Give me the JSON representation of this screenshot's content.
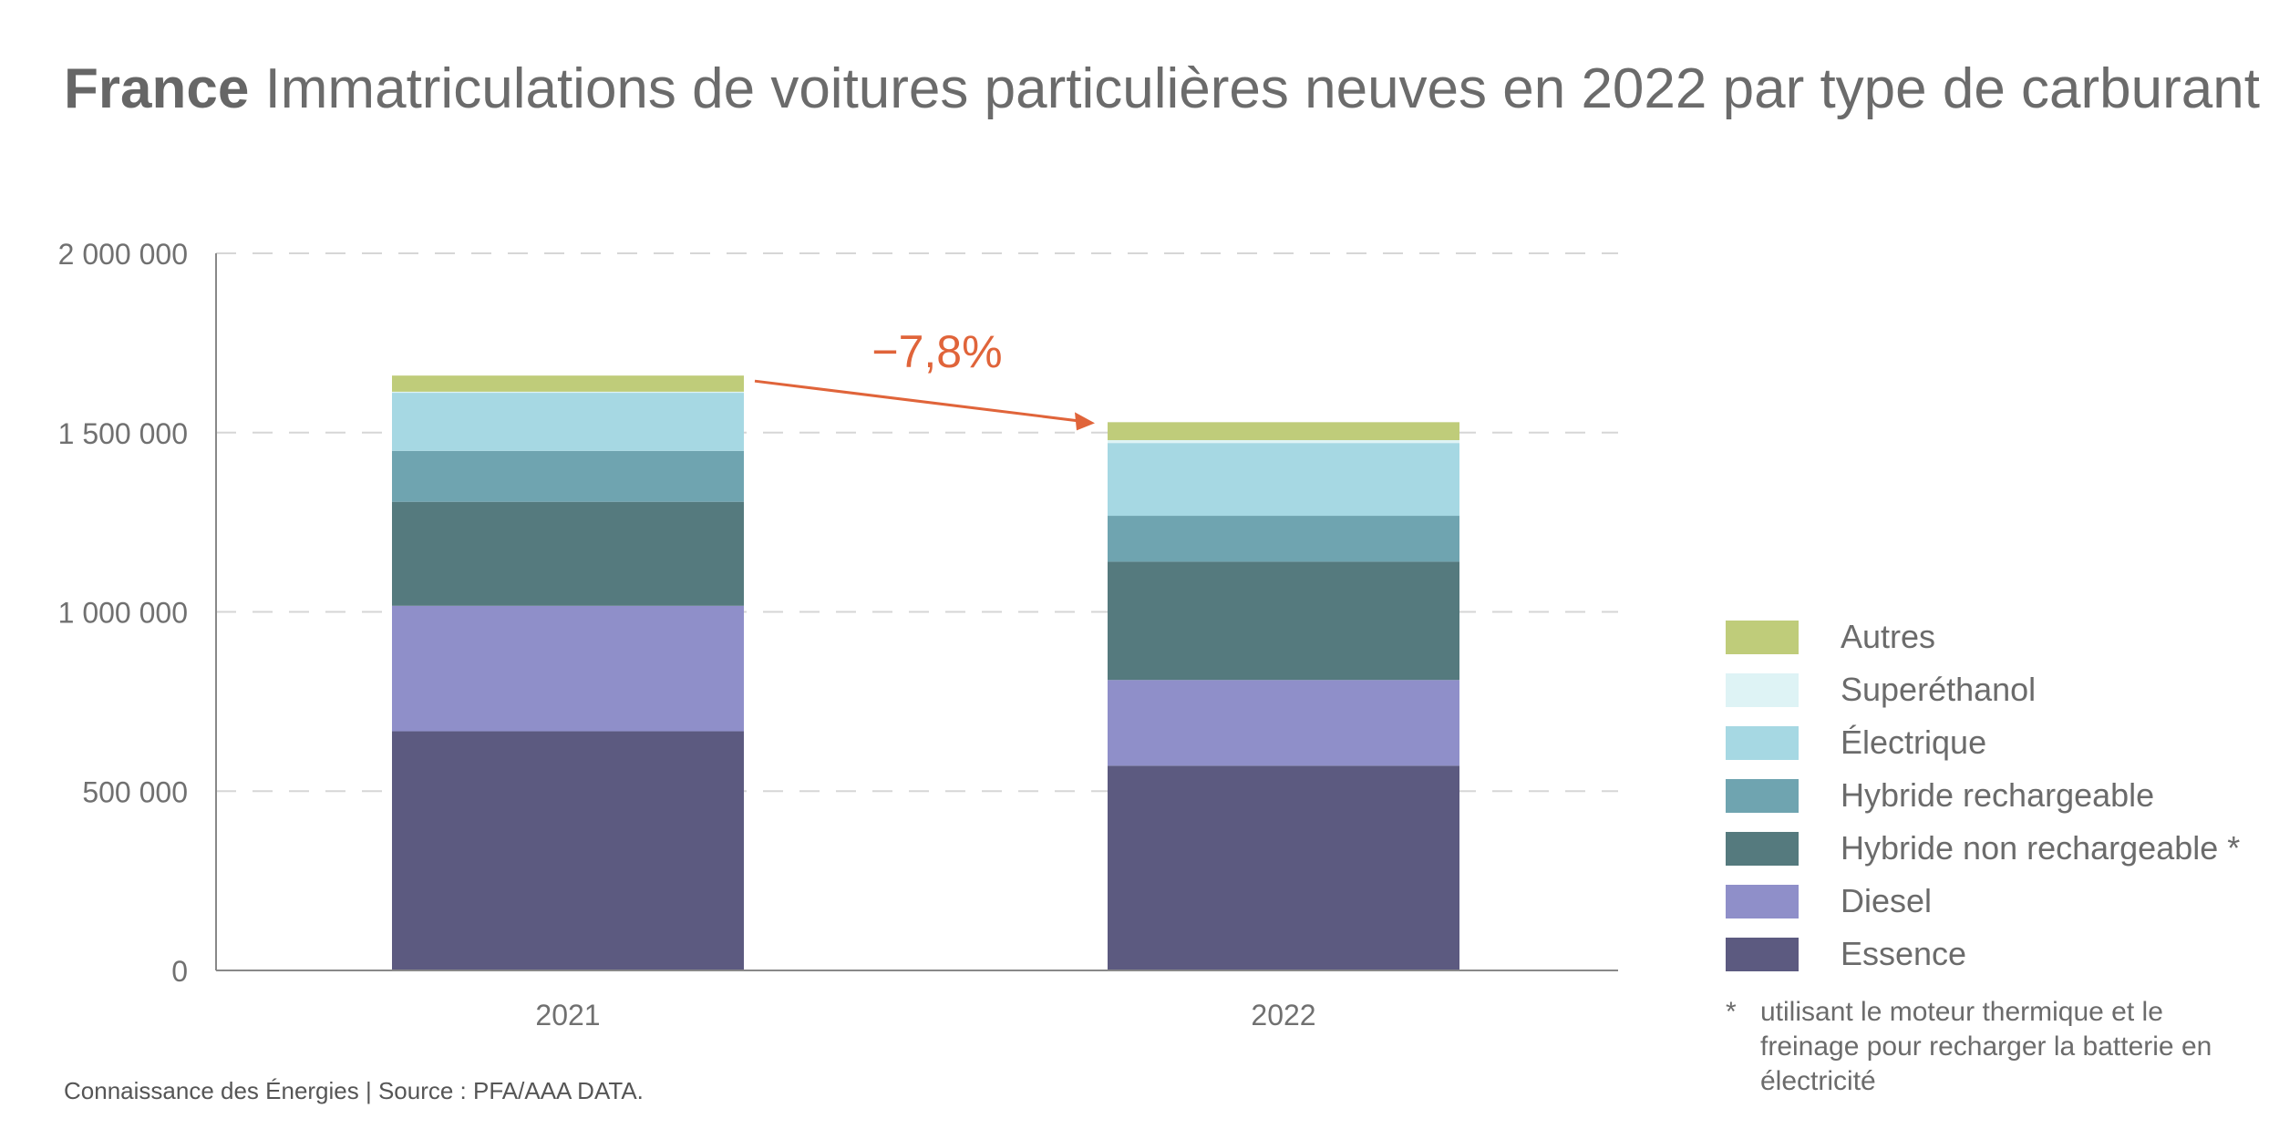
{
  "chart_data": {
    "type": "bar",
    "stacked": true,
    "title_bold": "France",
    "title": "Immatriculations de voitures particulières neuves en 2022 par type de carburant",
    "categories": [
      "2021",
      "2022"
    ],
    "series": [
      {
        "name": "Essence",
        "color": "#5c5a80",
        "values": [
          667000,
          571000
        ]
      },
      {
        "name": "Diesel",
        "color": "#8f8fc9",
        "values": [
          350000,
          239000
        ]
      },
      {
        "name": "Hybride non rechargeable *",
        "color": "#557a7e",
        "values": [
          290000,
          330000
        ]
      },
      {
        "name": "Hybride rechargeable",
        "color": "#6fa4b0",
        "values": [
          142000,
          128000
        ]
      },
      {
        "name": "Électrique",
        "color": "#a6d8e3",
        "values": [
          162000,
          203000
        ]
      },
      {
        "name": "Superéthanol",
        "color": "#def3f5",
        "values": [
          3000,
          8000
        ]
      },
      {
        "name": "Autres",
        "color": "#bfcc7a",
        "values": [
          45000,
          50000
        ]
      }
    ],
    "yticks": [
      "0",
      "500 000",
      "1 000 000",
      "1 500 000",
      "2 000 000"
    ],
    "ylim": [
      0,
      2000000
    ],
    "grid": true,
    "legend_position": "right",
    "annotation": {
      "text": "−7,8%",
      "color": "#e0643a"
    }
  },
  "footnote": {
    "star": "*",
    "text": "utilisant le moteur thermique et le freinage pour recharger la batterie en électricité"
  },
  "source": "Connaissance des Énergies | Source : PFA/AAA DATA."
}
